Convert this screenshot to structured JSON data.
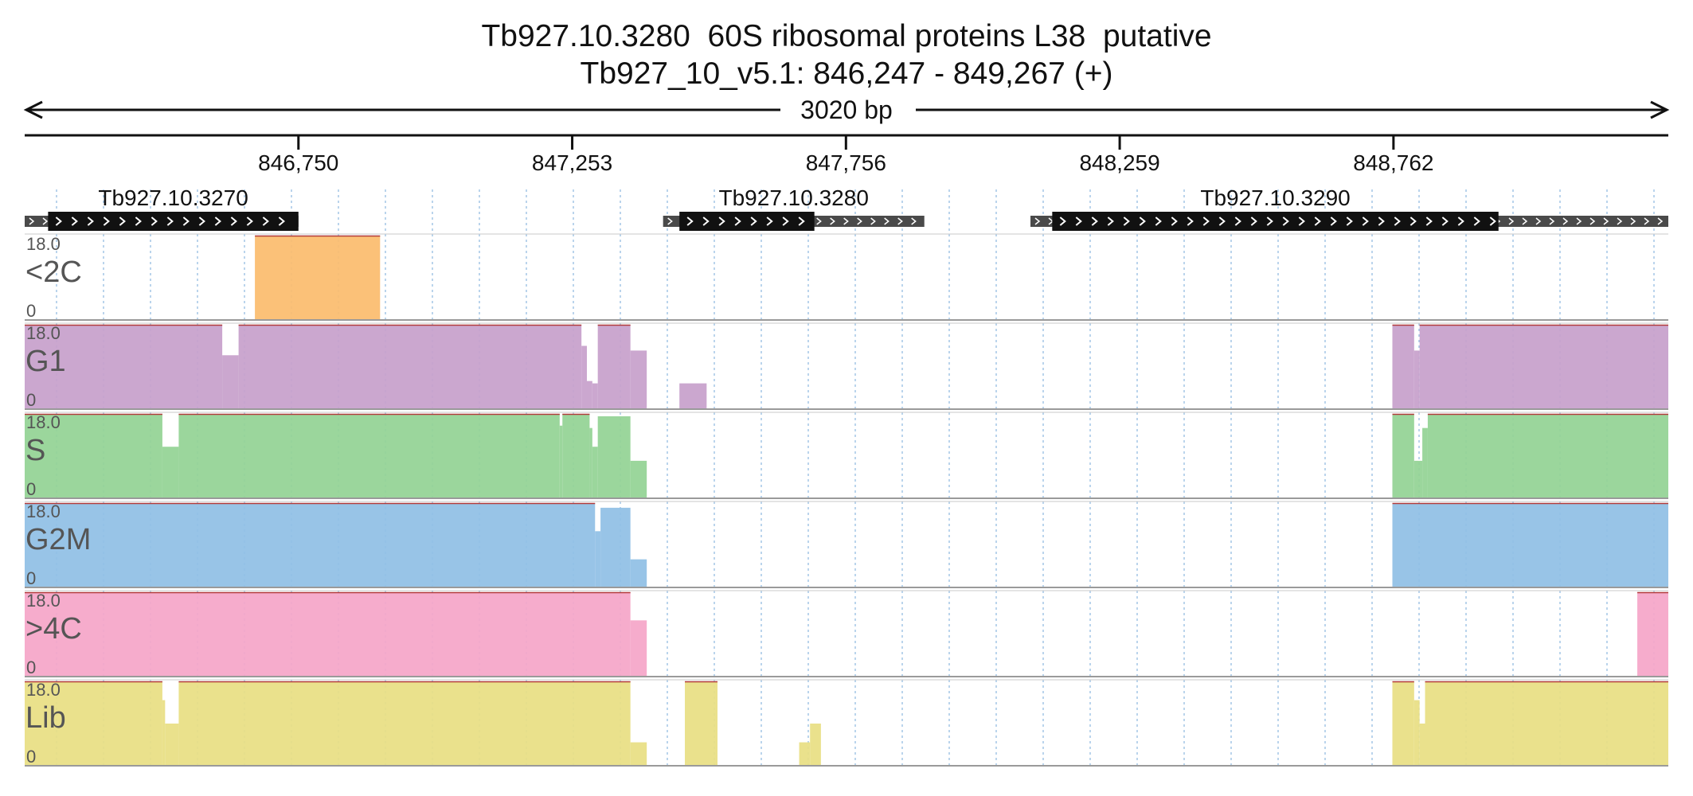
{
  "header": {
    "title": "Tb927.10.3280  60S ribosomal proteins L38  putative",
    "subtitle": "Tb927_10_v5.1: 846,247 - 849,267 (+)"
  },
  "chart_data": {
    "type": "area",
    "region": {
      "chrom": "Tb927_10_v5.1",
      "start": 846247,
      "end": 849267,
      "strand": "+"
    },
    "span_label": "3020 bp",
    "grid": true,
    "ticks": [
      {
        "pos": 846750,
        "label": "846,750"
      },
      {
        "pos": 847253,
        "label": "847,253"
      },
      {
        "pos": 847756,
        "label": "847,756"
      },
      {
        "pos": 848259,
        "label": "848,259"
      },
      {
        "pos": 848762,
        "label": "848,762"
      }
    ],
    "genes": [
      {
        "name": "Tb927.10.3270",
        "span_start": 846247,
        "span_end": 846750,
        "cds_start": 846290,
        "cds_end": 846750
      },
      {
        "name": "Tb927.10.3280",
        "span_start": 847420,
        "span_end": 847900,
        "cds_start": 847450,
        "cds_end": 847698
      },
      {
        "name": "Tb927.10.3290",
        "span_start": 848095,
        "span_end": 849267,
        "cds_start": 848135,
        "cds_end": 848955
      }
    ],
    "ylim": [
      0,
      18.0
    ],
    "ymax_label": "18.0",
    "ymin_label": "0",
    "series": [
      {
        "name": "<2C",
        "color": "#fbbc6d",
        "segments": [
          {
            "start": 846670,
            "end": 846900,
            "values": [
              18
            ]
          }
        ]
      },
      {
        "name": "G1",
        "color": "#c7a0cb",
        "segments": [
          {
            "start": 846247,
            "end": 846610,
            "values": [
              18
            ]
          },
          {
            "start": 846610,
            "end": 846640,
            "values": [
              11.5
            ]
          },
          {
            "start": 846640,
            "end": 847270,
            "values": [
              18
            ]
          },
          {
            "start": 847270,
            "end": 847280,
            "values": [
              13.5
            ]
          },
          {
            "start": 847280,
            "end": 847290,
            "values": [
              6
            ]
          },
          {
            "start": 847290,
            "end": 847300,
            "values": [
              5.5
            ]
          },
          {
            "start": 847300,
            "end": 847300,
            "values": [
              5.5
            ]
          },
          {
            "start": 847300,
            "end": 847360,
            "values": [
              18
            ]
          },
          {
            "start": 847360,
            "end": 847390,
            "values": [
              12.5
            ]
          },
          {
            "start": 847450,
            "end": 847500,
            "values": [
              5.5
            ]
          },
          {
            "start": 848760,
            "end": 848800,
            "values": [
              18
            ]
          },
          {
            "start": 848800,
            "end": 848810,
            "values": [
              12.5
            ]
          },
          {
            "start": 848810,
            "end": 849267,
            "values": [
              18
            ]
          }
        ]
      },
      {
        "name": "S",
        "color": "#92d394",
        "segments": [
          {
            "start": 846247,
            "end": 846500,
            "values": [
              18
            ]
          },
          {
            "start": 846500,
            "end": 846530,
            "values": [
              11
            ]
          },
          {
            "start": 846530,
            "end": 847230,
            "values": [
              18
            ]
          },
          {
            "start": 847230,
            "end": 847235,
            "values": [
              15.5
            ]
          },
          {
            "start": 847235,
            "end": 847285,
            "values": [
              18
            ]
          },
          {
            "start": 847285,
            "end": 847290,
            "values": [
              15
            ]
          },
          {
            "start": 847290,
            "end": 847300,
            "values": [
              11
            ]
          },
          {
            "start": 847300,
            "end": 847360,
            "values": [
              17.5
            ]
          },
          {
            "start": 847360,
            "end": 847390,
            "values": [
              8
            ]
          },
          {
            "start": 848760,
            "end": 848800,
            "values": [
              18
            ]
          },
          {
            "start": 848800,
            "end": 848815,
            "values": [
              8
            ]
          },
          {
            "start": 848815,
            "end": 848825,
            "values": [
              15
            ]
          },
          {
            "start": 848825,
            "end": 849267,
            "values": [
              18
            ]
          }
        ]
      },
      {
        "name": "G2M",
        "color": "#8fbfe5",
        "segments": [
          {
            "start": 846247,
            "end": 847295,
            "values": [
              18
            ]
          },
          {
            "start": 847295,
            "end": 847305,
            "values": [
              12
            ]
          },
          {
            "start": 847305,
            "end": 847360,
            "values": [
              17
            ]
          },
          {
            "start": 847360,
            "end": 847390,
            "values": [
              6
            ]
          },
          {
            "start": 848760,
            "end": 849267,
            "values": [
              18
            ]
          }
        ]
      },
      {
        "name": ">4C",
        "color": "#f5a5c8",
        "segments": [
          {
            "start": 846247,
            "end": 847360,
            "values": [
              18
            ]
          },
          {
            "start": 847360,
            "end": 847390,
            "values": [
              12
            ]
          },
          {
            "start": 849210,
            "end": 849267,
            "values": [
              18
            ]
          }
        ]
      },
      {
        "name": "Lib",
        "color": "#e8de82",
        "segments": [
          {
            "start": 846247,
            "end": 846500,
            "values": [
              18
            ]
          },
          {
            "start": 846500,
            "end": 846505,
            "values": [
              14
            ]
          },
          {
            "start": 846505,
            "end": 846530,
            "values": [
              9
            ]
          },
          {
            "start": 846530,
            "end": 847360,
            "values": [
              18
            ]
          },
          {
            "start": 847360,
            "end": 847390,
            "values": [
              5
            ]
          },
          {
            "start": 847460,
            "end": 847520,
            "values": [
              18
            ]
          },
          {
            "start": 847670,
            "end": 847690,
            "values": [
              5
            ]
          },
          {
            "start": 847690,
            "end": 847710,
            "values": [
              9
            ]
          },
          {
            "start": 848760,
            "end": 848800,
            "values": [
              18
            ]
          },
          {
            "start": 848800,
            "end": 848810,
            "values": [
              14
            ]
          },
          {
            "start": 848810,
            "end": 848820,
            "values": [
              9
            ]
          },
          {
            "start": 848820,
            "end": 849267,
            "values": [
              18
            ]
          }
        ]
      }
    ]
  }
}
